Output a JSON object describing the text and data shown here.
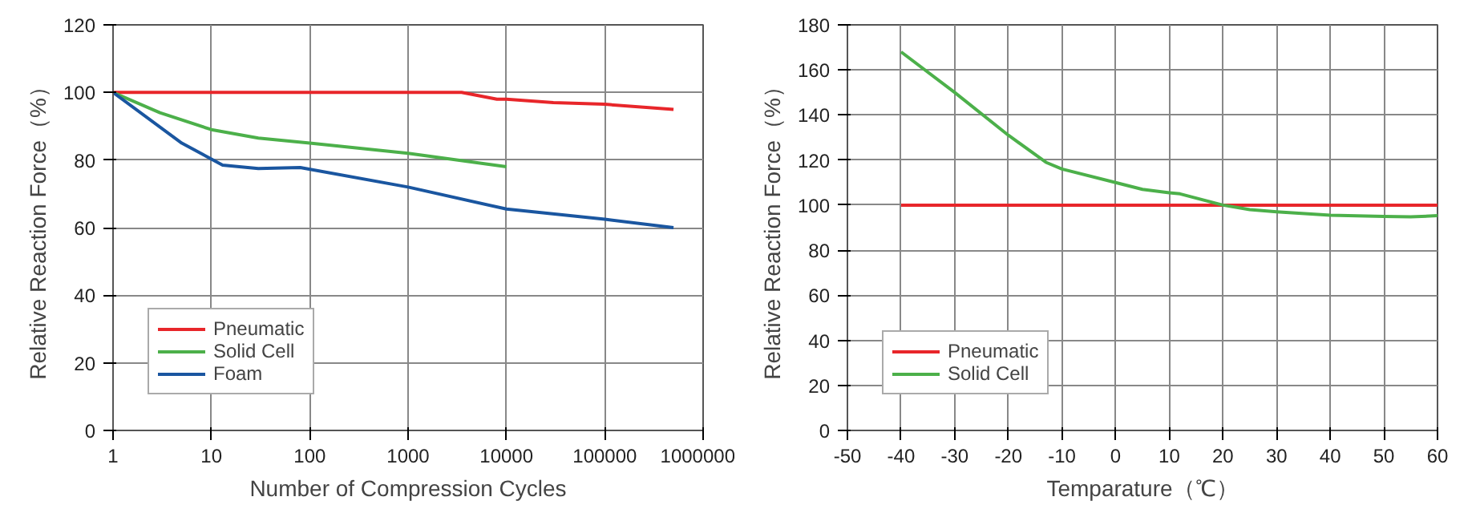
{
  "chart_data": [
    {
      "type": "line",
      "xlabel": "Number of Compression Cycles",
      "ylabel": "Relative Reaction Force（%）",
      "log": "x",
      "xlim": [
        1,
        1000000
      ],
      "xticks": [
        1,
        10,
        100,
        1000,
        10000,
        100000,
        1000000
      ],
      "ylim": [
        0,
        120
      ],
      "yticks": [
        0,
        20,
        40,
        60,
        80,
        100,
        120
      ],
      "grid": true,
      "legend": "bottom left",
      "series": [
        {
          "name": "Pneumatic",
          "color": "#e8262a",
          "x": [
            1,
            3500,
            8000,
            10000,
            30000,
            100000,
            500000
          ],
          "values": [
            100,
            100,
            98,
            98,
            97,
            96.5,
            95
          ]
        },
        {
          "name": "Solid Cell",
          "color": "#4cb04a",
          "x": [
            1,
            3,
            10,
            30,
            100,
            1000,
            10000
          ],
          "values": [
            100,
            94,
            89,
            86.5,
            85,
            82,
            78
          ]
        },
        {
          "name": "Foam",
          "color": "#1a56a0",
          "x": [
            1,
            5,
            13,
            30,
            80,
            1000,
            10000,
            100000,
            500000
          ],
          "values": [
            100,
            85,
            78.5,
            77.5,
            77.8,
            72,
            65.5,
            62.5,
            60
          ]
        }
      ]
    },
    {
      "type": "line",
      "xlabel": "Temparature（℃）",
      "ylabel": "Relative Reaction Force（%）",
      "xlim": [
        -50,
        60
      ],
      "xticks": [
        -50,
        -40,
        -30,
        -20,
        -10,
        0,
        10,
        20,
        30,
        40,
        50,
        60
      ],
      "ylim": [
        0,
        180
      ],
      "yticks": [
        0,
        20,
        40,
        60,
        80,
        100,
        120,
        140,
        160,
        180
      ],
      "grid": true,
      "legend": "bottom left",
      "series": [
        {
          "name": "Pneumatic",
          "color": "#e8262a",
          "x": [
            -40,
            60
          ],
          "values": [
            100,
            100
          ]
        },
        {
          "name": "Solid Cell",
          "color": "#4cb04a",
          "x": [
            -40,
            -30,
            -20,
            -13,
            -10,
            0,
            5,
            10,
            12,
            20,
            25,
            30,
            40,
            50,
            55,
            60
          ],
          "values": [
            168,
            150,
            131,
            119,
            116,
            110,
            107,
            105.5,
            105,
            100,
            98,
            97,
            95.5,
            95,
            94.8,
            95.3
          ]
        }
      ]
    }
  ]
}
